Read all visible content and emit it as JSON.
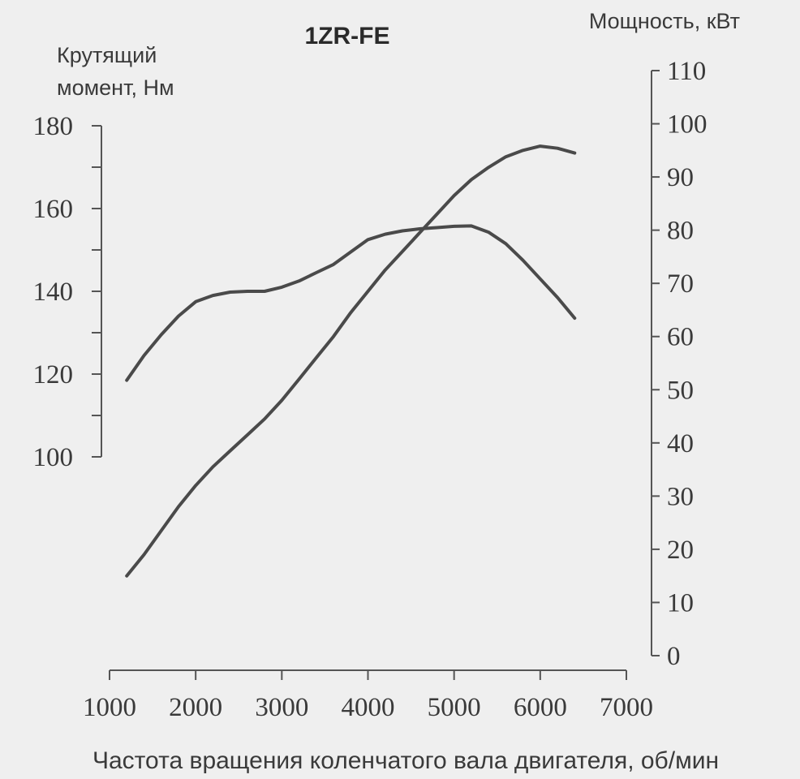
{
  "chart_data": {
    "type": "line",
    "title": "1ZR-FE",
    "xlabel": "Частота вращения коленчатого вала двигателя, об/мин",
    "ylabel_left_line1": "Крутящий",
    "ylabel_left_line2": "момент, Нм",
    "ylabel_right": "Мощность, кВт",
    "x_ticks": [
      "1000",
      "2000",
      "3000",
      "4000",
      "5000",
      "6000",
      "7000"
    ],
    "y_left_ticks": [
      "100",
      "120",
      "140",
      "160",
      "180"
    ],
    "y_right_ticks": [
      "0",
      "10",
      "20",
      "30",
      "40",
      "50",
      "60",
      "70",
      "80",
      "90",
      "100",
      "110"
    ],
    "xlim": [
      1000,
      7000
    ],
    "ylim_left": [
      100,
      180
    ],
    "ylim_right": [
      0,
      110
    ],
    "grid": false,
    "series": [
      {
        "axis": "left",
        "x": [
          1200,
          1400,
          1600,
          1800,
          2000,
          2200,
          2400,
          2600,
          2800,
          3000,
          3200,
          3400,
          3600,
          3800,
          4000,
          4200,
          4400,
          4600,
          4800,
          5000,
          5200,
          5400,
          5600,
          5800,
          6000,
          6200,
          6400
        ],
        "y": [
          118.5,
          124.5,
          129.5,
          134,
          137.5,
          139,
          139.8,
          140,
          140,
          141,
          142.5,
          144.5,
          146.5,
          149.5,
          152.5,
          153.8,
          154.6,
          155.1,
          155.4,
          155.7,
          155.8,
          154.3,
          151.5,
          147.5,
          143,
          138.5,
          133.5
        ]
      },
      {
        "axis": "right",
        "x": [
          1200,
          1400,
          1600,
          1800,
          2000,
          2200,
          2400,
          2600,
          2800,
          3000,
          3200,
          3400,
          3600,
          3800,
          4000,
          4200,
          4400,
          4600,
          4800,
          5000,
          5200,
          5400,
          5600,
          5800,
          6000,
          6200,
          6400
        ],
        "y": [
          15,
          19,
          23.5,
          28,
          32,
          35.5,
          38.5,
          41.5,
          44.5,
          48,
          52,
          56,
          60,
          64.5,
          68.5,
          72.5,
          76,
          79.5,
          83,
          86.5,
          89.5,
          91.8,
          93.8,
          95,
          95.8,
          95.4,
          94.5
        ]
      }
    ]
  }
}
